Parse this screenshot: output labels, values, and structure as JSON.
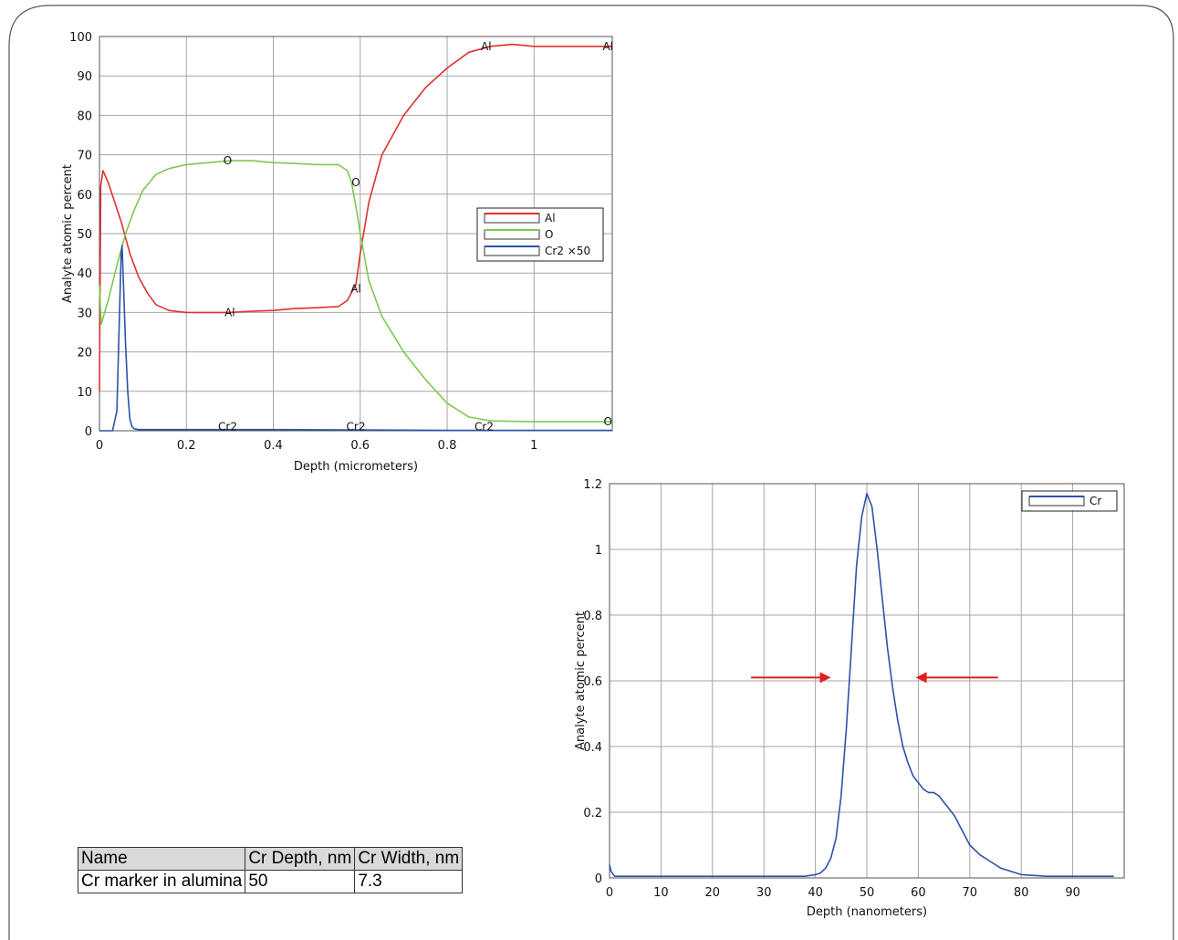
{
  "colors": {
    "al": "#e03030",
    "o": "#7ec850",
    "cr": "#2b53a8",
    "arrow": "#e02020"
  },
  "chart_data": [
    {
      "type": "line",
      "xlabel": "Depth (micrometers)",
      "ylabel": "Analyte atomic percent",
      "xlim": [
        0,
        1.18
      ],
      "ylim": [
        0,
        100
      ],
      "xticks": [
        0,
        0.2,
        0.4,
        0.6,
        0.8,
        1
      ],
      "xtick_labels": [
        "0",
        "0.2",
        "0.4",
        "0.6",
        "0.8",
        "1"
      ],
      "yticks": [
        0,
        10,
        20,
        30,
        40,
        50,
        60,
        70,
        80,
        90,
        100
      ],
      "grid": true,
      "legend_position": "right",
      "series": [
        {
          "name": "Al",
          "x": [
            0,
            0.003,
            0.008,
            0.02,
            0.035,
            0.05,
            0.07,
            0.09,
            0.11,
            0.13,
            0.16,
            0.2,
            0.25,
            0.3,
            0.35,
            0.4,
            0.45,
            0.5,
            0.55,
            0.57,
            0.58,
            0.59,
            0.6,
            0.62,
            0.65,
            0.7,
            0.75,
            0.8,
            0.85,
            0.9,
            0.95,
            1.0,
            1.1,
            1.18
          ],
          "y": [
            10,
            62,
            66,
            63,
            58,
            53,
            45,
            39,
            35,
            32,
            30.5,
            30,
            30,
            30,
            30.3,
            30.5,
            31,
            31.2,
            31.5,
            33,
            35,
            37,
            45,
            58,
            70,
            80,
            87,
            92,
            96,
            97.5,
            98,
            97.5,
            97.5,
            97.5
          ]
        },
        {
          "name": "O",
          "x": [
            0,
            0.004,
            0.02,
            0.04,
            0.06,
            0.08,
            0.1,
            0.13,
            0.16,
            0.2,
            0.25,
            0.3,
            0.35,
            0.4,
            0.45,
            0.5,
            0.55,
            0.57,
            0.58,
            0.59,
            0.6,
            0.62,
            0.65,
            0.7,
            0.75,
            0.8,
            0.85,
            0.9,
            1.0,
            1.1,
            1.18
          ],
          "y": [
            37,
            27,
            33,
            42,
            50,
            56,
            61,
            65,
            66.5,
            67.5,
            68,
            68.5,
            68.5,
            68,
            67.8,
            67.5,
            67.5,
            66,
            63,
            57,
            50,
            38,
            29,
            20,
            13,
            7,
            3.5,
            2.5,
            2.3,
            2.3,
            2.3
          ]
        },
        {
          "name": "Cr2 ×50",
          "x": [
            0,
            0.03,
            0.04,
            0.045,
            0.05,
            0.052,
            0.055,
            0.06,
            0.065,
            0.07,
            0.075,
            0.08,
            0.09,
            0.2,
            0.4,
            0.6,
            0.8,
            1.0,
            1.18
          ],
          "y": [
            0,
            0,
            5,
            25,
            45,
            47,
            38,
            22,
            10,
            3,
            1,
            0.5,
            0.3,
            0.3,
            0.3,
            0.2,
            0.1,
            0.1,
            0.1
          ]
        }
      ],
      "annotations": [
        {
          "text": "Al",
          "x": 0.3,
          "y": 30
        },
        {
          "text": "Al",
          "x": 0.59,
          "y": 36
        },
        {
          "text": "Al",
          "x": 0.89,
          "y": 97.5
        },
        {
          "text": "Al",
          "x": 1.17,
          "y": 97.5
        },
        {
          "text": "O",
          "x": 0.295,
          "y": 68.5
        },
        {
          "text": "O",
          "x": 0.59,
          "y": 63
        },
        {
          "text": "O",
          "x": 1.17,
          "y": 2.3
        },
        {
          "text": "Cr2",
          "x": 0.295,
          "y": 1
        },
        {
          "text": "Cr2",
          "x": 0.59,
          "y": 1
        },
        {
          "text": "Cr2",
          "x": 0.885,
          "y": 1
        }
      ]
    },
    {
      "type": "line",
      "xlabel": "Depth (nanometers)",
      "ylabel": "Analyte atomic percent",
      "xlim": [
        0,
        100
      ],
      "ylim": [
        0,
        1.2
      ],
      "xticks": [
        0,
        10,
        20,
        30,
        40,
        50,
        60,
        70,
        80,
        90
      ],
      "xtick_labels": [
        "0",
        "10",
        "20",
        "30",
        "40",
        "50",
        "60",
        "70",
        "80",
        "90"
      ],
      "yticks": [
        0,
        0.2,
        0.4,
        0.6,
        0.8,
        1,
        1.2
      ],
      "ytick_labels": [
        "0",
        "0.2",
        "0.4",
        "0.6",
        "0.8",
        "1",
        "1.2"
      ],
      "grid": true,
      "legend_position": "top-right",
      "series": [
        {
          "name": "Cr",
          "x": [
            0,
            0.3,
            1,
            10,
            20,
            30,
            38,
            40,
            41,
            42,
            43,
            44,
            45,
            46,
            47,
            48,
            49,
            50,
            51,
            52,
            53,
            54,
            55,
            56,
            57,
            58,
            59,
            60,
            61,
            62,
            63,
            64,
            65,
            66,
            67,
            68,
            69,
            70,
            72,
            74,
            76,
            78,
            80,
            85,
            90,
            95,
            98
          ],
          "y": [
            0.04,
            0.02,
            0.005,
            0.005,
            0.005,
            0.005,
            0.005,
            0.01,
            0.015,
            0.03,
            0.06,
            0.12,
            0.25,
            0.45,
            0.7,
            0.95,
            1.1,
            1.17,
            1.13,
            1.0,
            0.85,
            0.7,
            0.58,
            0.48,
            0.4,
            0.35,
            0.31,
            0.29,
            0.27,
            0.26,
            0.26,
            0.25,
            0.23,
            0.21,
            0.19,
            0.16,
            0.13,
            0.1,
            0.07,
            0.05,
            0.03,
            0.02,
            0.01,
            0.005,
            0.005,
            0.005,
            0.005
          ]
        }
      ],
      "arrows": [
        {
          "from": [
            27.5,
            0.61
          ],
          "to": [
            43,
            0.61
          ]
        },
        {
          "from": [
            75.5,
            0.61
          ],
          "to": [
            59.5,
            0.61
          ]
        }
      ]
    }
  ],
  "table": {
    "headers": [
      "Name",
      "Cr Depth, nm",
      "Cr Width, nm"
    ],
    "rows": [
      [
        "Cr marker in alumina",
        "50",
        "7.3"
      ]
    ]
  }
}
